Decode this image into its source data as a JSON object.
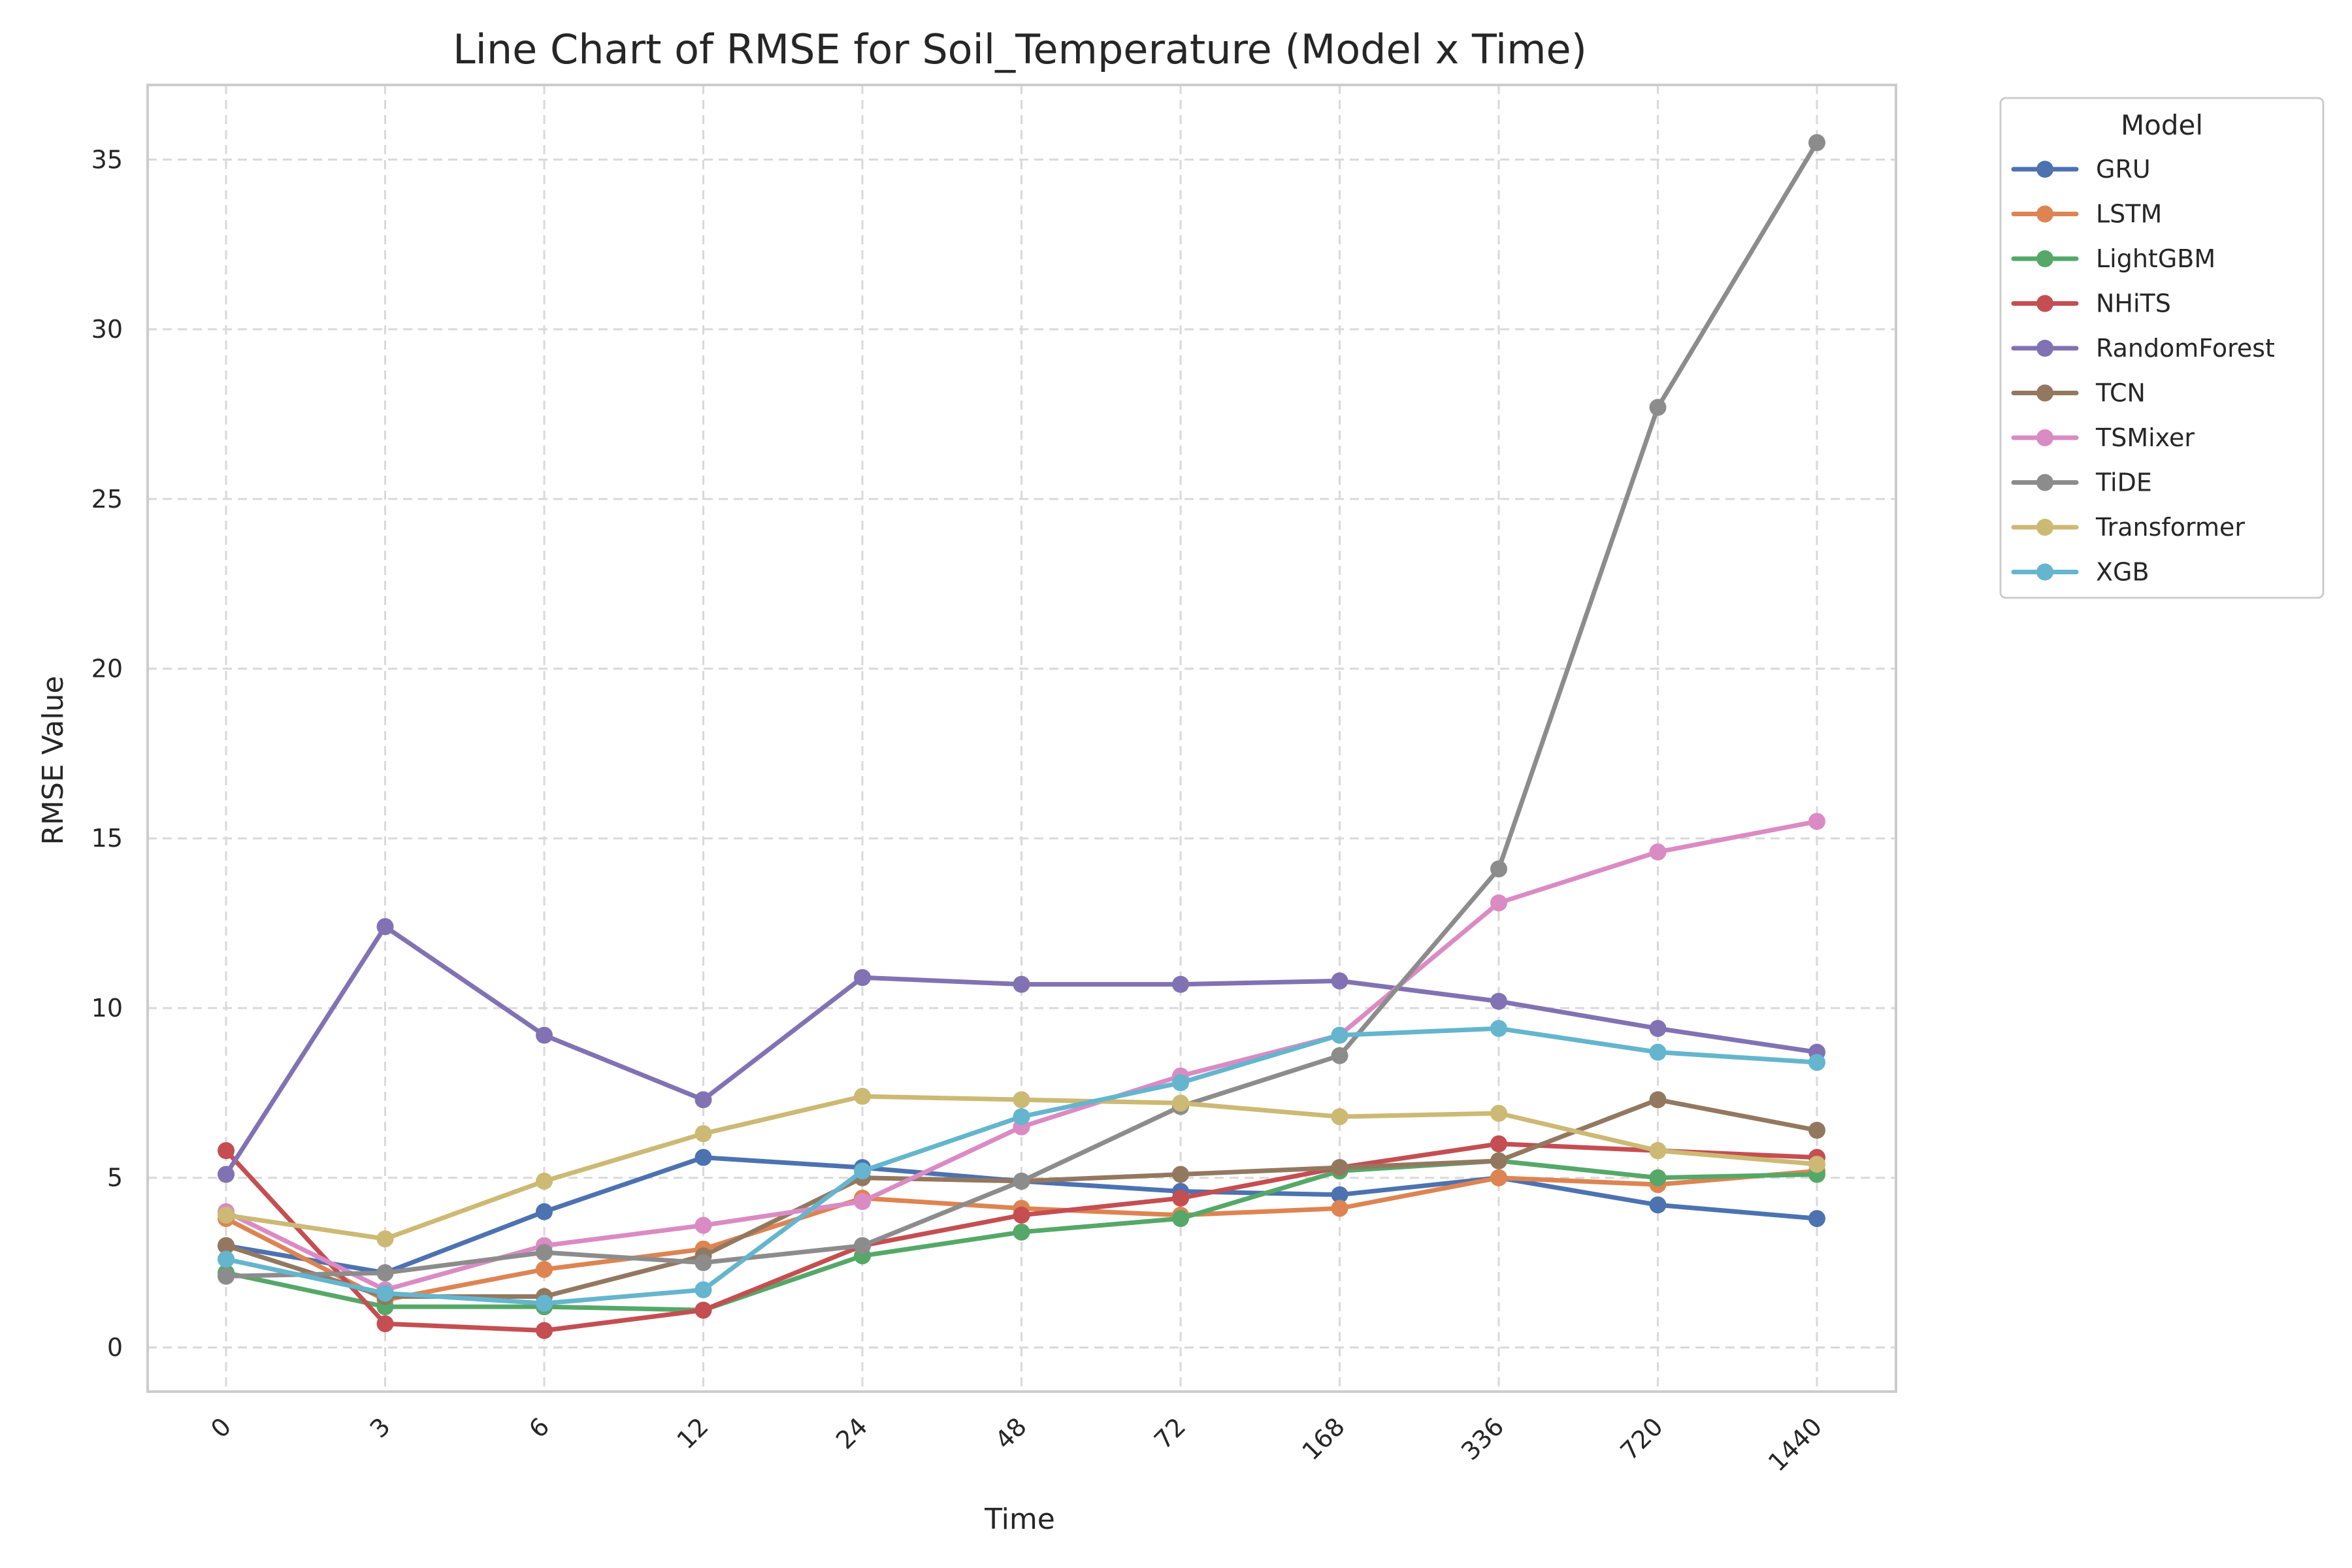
{
  "chart_data": {
    "type": "line",
    "title": "Line Chart of RMSE for Soil_Temperature (Model x Time)",
    "xlabel": "Time",
    "ylabel": "RMSE Value",
    "categories": [
      "0",
      "3",
      "6",
      "12",
      "24",
      "48",
      "72",
      "168",
      "336",
      "720",
      "1440"
    ],
    "yticks": [
      "0",
      "5",
      "10",
      "15",
      "20",
      "25",
      "30",
      "35"
    ],
    "ylim": [
      -1.3,
      37.2
    ],
    "grid": true,
    "legend": {
      "title": "Model",
      "placement": "outside right"
    },
    "series": [
      {
        "name": "GRU",
        "color": "#4c72b0",
        "values": [
          3.0,
          2.2,
          4.0,
          5.6,
          5.3,
          4.9,
          4.6,
          4.5,
          5.0,
          4.2,
          3.8
        ]
      },
      {
        "name": "LSTM",
        "color": "#dd8452",
        "values": [
          3.8,
          1.4,
          2.3,
          2.9,
          4.4,
          4.1,
          3.9,
          4.1,
          5.0,
          4.8,
          5.2
        ]
      },
      {
        "name": "LightGBM",
        "color": "#55a868",
        "values": [
          2.2,
          1.2,
          1.2,
          1.1,
          2.7,
          3.4,
          3.8,
          5.2,
          5.5,
          5.0,
          5.1
        ]
      },
      {
        "name": "NHiTS",
        "color": "#c44e52",
        "values": [
          5.8,
          0.7,
          0.5,
          1.1,
          3.0,
          3.9,
          4.4,
          5.3,
          6.0,
          5.8,
          5.6
        ]
      },
      {
        "name": "RandomForest",
        "color": "#8172b3",
        "values": [
          5.1,
          12.4,
          9.2,
          7.3,
          10.9,
          10.7,
          10.7,
          10.8,
          10.2,
          9.4,
          8.7
        ]
      },
      {
        "name": "TCN",
        "color": "#937860",
        "values": [
          3.0,
          1.5,
          1.5,
          2.7,
          5.0,
          4.9,
          5.1,
          5.3,
          5.5,
          7.3,
          6.4
        ]
      },
      {
        "name": "TSMixer",
        "color": "#da8bc3",
        "values": [
          4.0,
          1.7,
          3.0,
          3.6,
          4.3,
          6.5,
          8.0,
          9.2,
          13.1,
          14.6,
          15.5
        ]
      },
      {
        "name": "TiDE",
        "color": "#8c8c8c",
        "values": [
          2.1,
          2.2,
          2.8,
          2.5,
          3.0,
          4.9,
          7.1,
          8.6,
          14.1,
          27.7,
          35.5
        ]
      },
      {
        "name": "Transformer",
        "color": "#ccb974",
        "values": [
          3.9,
          3.2,
          4.9,
          6.3,
          7.4,
          7.3,
          7.2,
          6.8,
          6.9,
          5.8,
          5.4
        ]
      },
      {
        "name": "XGB",
        "color": "#64b5cd",
        "values": [
          2.6,
          1.6,
          1.3,
          1.7,
          5.2,
          6.8,
          7.8,
          9.2,
          9.4,
          8.7,
          8.4
        ]
      }
    ]
  }
}
